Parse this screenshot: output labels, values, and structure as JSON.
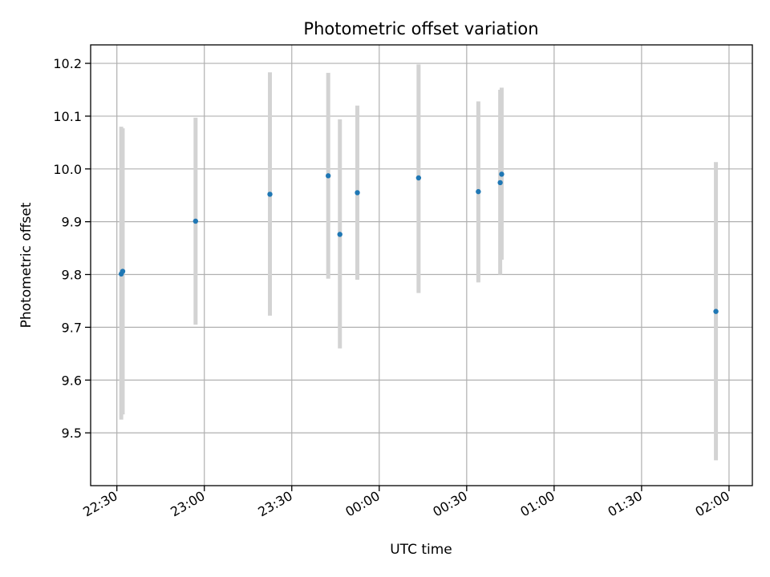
{
  "chart_data": {
    "type": "scatter",
    "title": "Photometric offset variation",
    "xlabel": "UTC time",
    "ylabel": "Photometric offset",
    "x_axis": "time",
    "xlim": [
      "22:21",
      "02:08"
    ],
    "ylim": [
      9.4,
      10.235
    ],
    "grid": true,
    "x_ticks": [
      "22:30",
      "23:00",
      "23:30",
      "00:00",
      "00:30",
      "01:00",
      "01:30",
      "02:00"
    ],
    "y_ticks": [
      "9.5",
      "9.6",
      "9.7",
      "9.8",
      "9.9",
      "10.0",
      "10.1",
      "10.2"
    ],
    "colors": {
      "points": "#1f77b4",
      "errorbars": "#d3d3d3"
    },
    "points": [
      {
        "time": "22:31:30",
        "y": 9.801,
        "err_low": 9.525,
        "err_high": 10.08
      },
      {
        "time": "22:32:00",
        "y": 9.806,
        "err_low": 9.535,
        "err_high": 10.077
      },
      {
        "time": "22:57:00",
        "y": 9.901,
        "err_low": 9.705,
        "err_high": 10.097
      },
      {
        "time": "23:22:30",
        "y": 9.952,
        "err_low": 9.722,
        "err_high": 10.183
      },
      {
        "time": "23:42:30",
        "y": 9.987,
        "err_low": 9.792,
        "err_high": 10.182
      },
      {
        "time": "23:46:30",
        "y": 9.876,
        "err_low": 9.66,
        "err_high": 10.094
      },
      {
        "time": "23:52:30",
        "y": 9.955,
        "err_low": 9.79,
        "err_high": 10.12
      },
      {
        "time": "00:13:30",
        "y": 9.983,
        "err_low": 9.765,
        "err_high": 10.198
      },
      {
        "time": "00:34:00",
        "y": 9.957,
        "err_low": 9.785,
        "err_high": 10.128
      },
      {
        "time": "00:41:30",
        "y": 9.974,
        "err_low": 9.8,
        "err_high": 10.15
      },
      {
        "time": "00:42:00",
        "y": 9.99,
        "err_low": 9.828,
        "err_high": 10.154
      },
      {
        "time": "01:55:30",
        "y": 9.73,
        "err_low": 9.448,
        "err_high": 10.013
      }
    ]
  }
}
